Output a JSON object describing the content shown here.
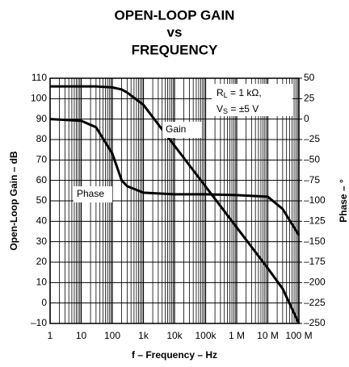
{
  "chart_data": {
    "type": "line",
    "title": [
      "OPEN-LOOP GAIN",
      "vs",
      "FREQUENCY"
    ],
    "x_label": "f – Frequency – Hz",
    "y_label": "Open-Loop Gain – dB",
    "y2_label": "Phase – °",
    "annotation": {
      "r": "R",
      "r_sub": "L",
      "r_rest": " = 1 kΩ,",
      "v": "V",
      "v_sub": "S",
      "v_rest": " = ±5 V"
    },
    "x_scale": "log",
    "xlim": [
      1,
      100000000
    ],
    "xticks": [
      1,
      10,
      100,
      {
        "value": 1000,
        "label": "1k"
      },
      {
        "value": 10000,
        "label": "10k"
      },
      {
        "value": 100000,
        "label": "100k"
      },
      {
        "value": 1000000,
        "label": "1 M"
      },
      {
        "value": 10000000,
        "label": "10 M"
      },
      {
        "value": 100000000,
        "label": "100 M"
      }
    ],
    "ylim": [
      -10,
      110
    ],
    "yticks": [
      {
        "value": -10,
        "label": "–10"
      },
      0,
      10,
      20,
      30,
      40,
      50,
      60,
      70,
      80,
      90,
      100,
      110
    ],
    "y2lim": [
      -250,
      50
    ],
    "y2ticks": [
      {
        "value": -250,
        "label": "–250"
      },
      {
        "value": -225,
        "label": "–225"
      },
      {
        "value": -200,
        "label": "–200"
      },
      {
        "value": -175,
        "label": "–175"
      },
      {
        "value": -150,
        "label": "–150"
      },
      {
        "value": -125,
        "label": "–125"
      },
      {
        "value": -100,
        "label": "–100"
      },
      {
        "value": -75,
        "label": "–75"
      },
      {
        "value": -50,
        "label": "–50"
      },
      {
        "value": -25,
        "label": "–25"
      },
      0,
      25,
      50
    ],
    "grid": true,
    "minor_grid": true,
    "x": [
      1,
      10,
      30,
      100,
      200,
      300,
      1000,
      10000,
      100000,
      1000000,
      10000000,
      30000000,
      100000000
    ],
    "series": [
      {
        "name": "Gain",
        "color": "#000000",
        "values": [
          106,
          106,
          106,
          105.5,
          104.5,
          103,
          97,
          77,
          57,
          37,
          17,
          7,
          -10
        ]
      },
      {
        "name": "Phase",
        "color": "#000000",
        "axis": "y2",
        "values": [
          0,
          -2,
          -10,
          -42,
          -75,
          -82,
          -90,
          -92,
          -92,
          -93,
          -95,
          -110,
          -142
        ]
      }
    ]
  }
}
